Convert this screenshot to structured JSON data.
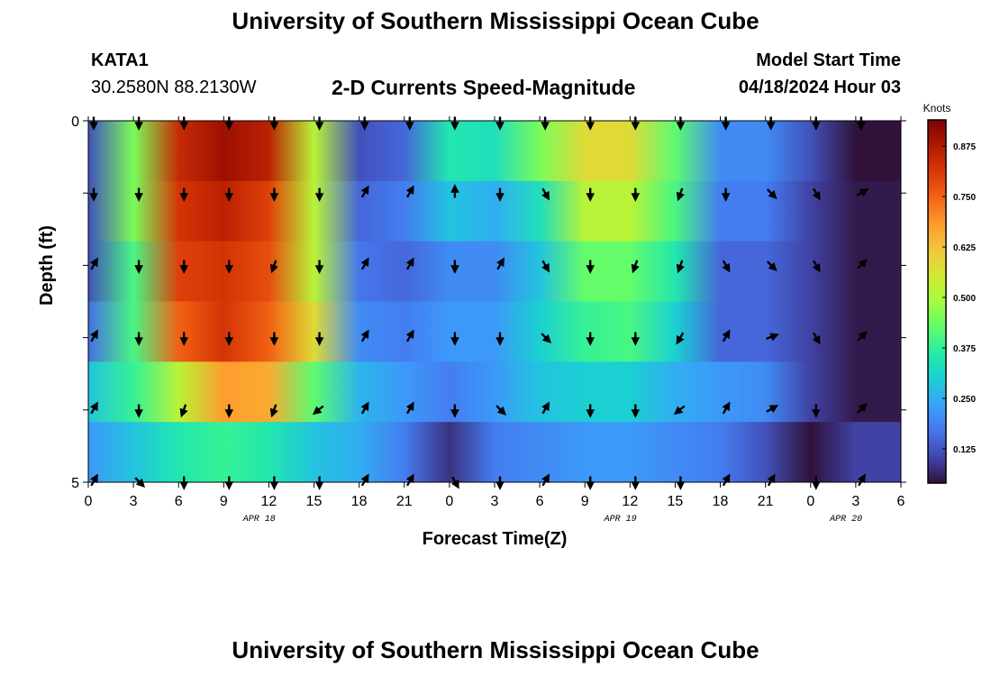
{
  "page": {
    "title_top": "University of Southern Mississippi Ocean Cube",
    "title_bottom": "University of Southern Mississippi Ocean Cube",
    "station_id": "KATA1",
    "coordinates": "30.2580N  88.2130W",
    "subtitle": "2-D Currents Speed-Magnitude",
    "model_start_label": "Model Start Time",
    "model_start_value": "04/18/2024 Hour 03"
  },
  "colors": {
    "scale": [
      "#30123b",
      "#4145ab",
      "#4675ed",
      "#39a2fc",
      "#1bcfd4",
      "#24eca6",
      "#61fc6c",
      "#a4fc3b",
      "#d1e834",
      "#f3c63a",
      "#fe9b2d",
      "#f36315",
      "#d93806",
      "#b11901",
      "#7a0402"
    ],
    "arrow": "#000000",
    "axis": "#000000"
  },
  "chart_data": {
    "type": "heatmap",
    "title": "2-D Currents Speed-Magnitude",
    "xlabel": "Forecast Time(Z)",
    "ylabel": "Depth (ft)",
    "x_hours": [
      0,
      3,
      6,
      9,
      12,
      15,
      18,
      21,
      24,
      27,
      30,
      33,
      36,
      39,
      42,
      45,
      48,
      51
    ],
    "xtick_labels": [
      "0",
      "3",
      "6",
      "9",
      "12",
      "15",
      "18",
      "21",
      "0",
      "3",
      "6",
      "9",
      "12",
      "15",
      "18",
      "21",
      "0",
      "3",
      "6"
    ],
    "xtick_hours": [
      0,
      3,
      6,
      9,
      12,
      15,
      18,
      21,
      24,
      27,
      30,
      33,
      36,
      39,
      42,
      45,
      48,
      51,
      54
    ],
    "xlim": [
      0,
      54
    ],
    "date_labels": [
      {
        "label": "APR 18",
        "hour": 11
      },
      {
        "label": "APR 19",
        "hour": 35
      },
      {
        "label": "APR 20",
        "hour": 50
      }
    ],
    "ytick_labels": [
      "0",
      "5"
    ],
    "ylim": [
      0,
      5
    ],
    "depth_levels_ft": [
      0,
      1,
      2,
      3,
      4,
      5
    ],
    "colorbar": {
      "label": "Knots",
      "ticks": [
        "0.125",
        "0.250",
        "0.375",
        "0.500",
        "0.625",
        "0.750",
        "0.875"
      ],
      "tick_values": [
        0.125,
        0.25,
        0.375,
        0.5,
        0.625,
        0.75,
        0.875
      ],
      "range": [
        0.04,
        0.94
      ]
    },
    "speed_knots": [
      [
        0.12,
        0.45,
        0.84,
        0.9,
        0.86,
        0.52,
        0.12,
        0.15,
        0.35,
        0.33,
        0.45,
        0.58,
        0.58,
        0.42,
        0.2,
        0.2,
        0.12,
        0.04
      ],
      [
        0.12,
        0.45,
        0.82,
        0.86,
        0.8,
        0.52,
        0.15,
        0.18,
        0.28,
        0.25,
        0.33,
        0.52,
        0.52,
        0.4,
        0.18,
        0.18,
        0.1,
        0.05
      ],
      [
        0.12,
        0.4,
        0.8,
        0.82,
        0.78,
        0.52,
        0.17,
        0.15,
        0.2,
        0.2,
        0.28,
        0.43,
        0.43,
        0.35,
        0.15,
        0.15,
        0.1,
        0.05
      ],
      [
        0.16,
        0.4,
        0.75,
        0.82,
        0.75,
        0.58,
        0.2,
        0.18,
        0.22,
        0.22,
        0.3,
        0.38,
        0.4,
        0.3,
        0.15,
        0.15,
        0.1,
        0.05
      ],
      [
        0.28,
        0.38,
        0.52,
        0.68,
        0.66,
        0.42,
        0.26,
        0.22,
        0.18,
        0.22,
        0.28,
        0.3,
        0.3,
        0.25,
        0.22,
        0.2,
        0.1,
        0.05
      ],
      [
        0.22,
        0.28,
        0.35,
        0.38,
        0.35,
        0.28,
        0.25,
        0.18,
        0.08,
        0.18,
        0.2,
        0.22,
        0.22,
        0.2,
        0.18,
        0.12,
        0.04,
        0.1
      ]
    ],
    "direction_deg": [
      [
        270,
        270,
        270,
        270,
        270,
        270,
        270,
        270,
        270,
        270,
        270,
        270,
        270,
        270,
        270,
        270,
        270,
        270
      ],
      [
        270,
        270,
        270,
        270,
        270,
        270,
        60,
        60,
        90,
        270,
        300,
        270,
        270,
        250,
        270,
        315,
        300,
        30
      ],
      [
        60,
        270,
        270,
        270,
        250,
        270,
        60,
        60,
        270,
        60,
        300,
        270,
        250,
        250,
        300,
        315,
        300,
        45
      ],
      [
        60,
        270,
        270,
        270,
        270,
        270,
        60,
        60,
        270,
        270,
        315,
        270,
        270,
        240,
        60,
        20,
        300,
        45
      ],
      [
        60,
        270,
        250,
        270,
        250,
        220,
        60,
        60,
        270,
        315,
        60,
        270,
        270,
        220,
        60,
        30,
        270,
        45
      ],
      [
        60,
        315,
        270,
        270,
        270,
        270,
        60,
        60,
        300,
        270,
        60,
        270,
        270,
        270,
        60,
        60,
        270,
        60
      ]
    ]
  }
}
